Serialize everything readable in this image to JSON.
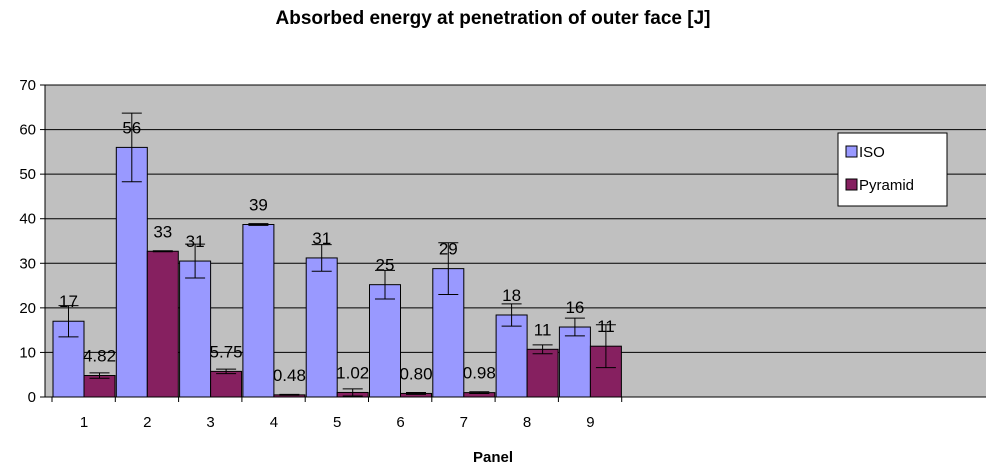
{
  "chart_data": {
    "type": "bar",
    "title": "Absorbed energy at penetration of outer face [J]",
    "xlabel": "Panel",
    "ylabel": "",
    "ylim": [
      0,
      70
    ],
    "yticks": [
      0,
      10,
      20,
      30,
      40,
      50,
      60,
      70
    ],
    "grid": true,
    "legend_position": "right",
    "categories": [
      "1",
      "2",
      "3",
      "4",
      "5",
      "6",
      "7",
      "8",
      "9"
    ],
    "series": [
      {
        "name": "ISO",
        "color": "#9999ff",
        "values": [
          17,
          56,
          30.5,
          38.7,
          31.2,
          25.2,
          28.8,
          18.4,
          15.7
        ],
        "labels": [
          "17",
          "56",
          "31",
          "39",
          "31",
          "25",
          "29",
          "18",
          "16"
        ],
        "error": [
          3.5,
          7.7,
          3.8,
          0.2,
          3.0,
          3.2,
          5.8,
          2.5,
          2.0
        ]
      },
      {
        "name": "Pyramid",
        "color": "#862060",
        "values": [
          4.82,
          32.7,
          5.75,
          0.48,
          1.02,
          0.8,
          0.98,
          10.7,
          11.4
        ],
        "labels": [
          "4.82",
          "33",
          "5.75",
          "0.48",
          "1.02",
          "0.80",
          "0.98",
          "11",
          "11"
        ],
        "error": [
          0.6,
          0.1,
          0.5,
          0.1,
          0.8,
          0.2,
          0.2,
          1.0,
          4.8
        ]
      }
    ]
  }
}
